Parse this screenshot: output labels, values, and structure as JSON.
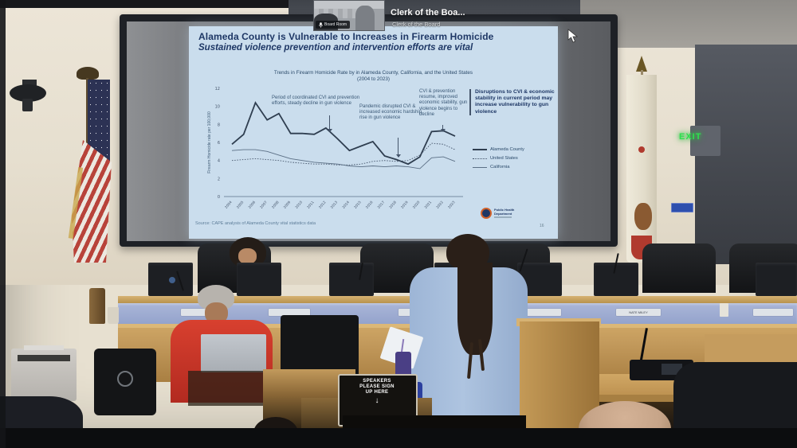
{
  "video_overlay": {
    "participant_title": "Clerk of the Boa...",
    "participant_subtitle": "Clerk of the Board",
    "thumbnail_label": "Board Room"
  },
  "slide": {
    "title": "Alameda County is Vulnerable to Increases in Firearm Homicide",
    "subtitle": "Sustained violence prevention and intervention efforts are vital",
    "callout": "Disruptions to CVI & economic stability in current period may increase vulnerability to gun violence",
    "source": "Source: CAPE analysis of Alameda County vital statistics data",
    "logo_line1": "Public Health",
    "logo_line2": "Department",
    "page_number": "16"
  },
  "chart_data": {
    "type": "line",
    "title": "Trends in Firearm Homicide Rate by in Alameda County, California, and the United States",
    "subtitle": "(2004 to 2023)",
    "ylabel": "Firearm Homicide rate per 100,000",
    "ylim": [
      0,
      12
    ],
    "yticks": [
      0,
      2,
      4,
      6,
      8,
      10,
      12
    ],
    "grid": false,
    "legend_position": "right",
    "x": [
      2004,
      2005,
      2006,
      2007,
      2008,
      2009,
      2010,
      2011,
      2012,
      2013,
      2014,
      2015,
      2016,
      2017,
      2018,
      2019,
      2020,
      2021,
      2022,
      2023
    ],
    "series": [
      {
        "name": "Alameda County",
        "style": "solid-thick",
        "color": "#2f3e50",
        "values": [
          5.8,
          6.9,
          10.4,
          8.5,
          9.2,
          7.0,
          7.0,
          6.9,
          7.6,
          6.4,
          5.1,
          5.6,
          6.1,
          4.5,
          4.1,
          3.6,
          4.4,
          7.2,
          7.3,
          6.7
        ]
      },
      {
        "name": "United States",
        "style": "dotted",
        "color": "#44546a",
        "values": [
          4.0,
          4.1,
          4.2,
          4.1,
          4.0,
          3.8,
          3.7,
          3.6,
          3.6,
          3.5,
          3.5,
          3.6,
          3.9,
          4.0,
          3.9,
          4.0,
          4.6,
          5.9,
          5.8,
          5.2
        ]
      },
      {
        "name": "California",
        "style": "solid-thin",
        "color": "#5b6f85",
        "values": [
          5.1,
          5.2,
          5.2,
          5.0,
          4.6,
          4.2,
          4.0,
          3.8,
          3.7,
          3.6,
          3.4,
          3.3,
          3.4,
          3.3,
          3.4,
          3.3,
          3.1,
          4.3,
          4.4,
          3.9
        ]
      }
    ],
    "annotations": [
      {
        "text": "Period of coordinated CVI and prevention efforts, steady decline in gun violence"
      },
      {
        "text": "Pandemic disrupted CVI & increased economic hardship, rise in gun violence"
      },
      {
        "text": "CVI & prevention resume, improved economic stability, gun violence begins to decline"
      }
    ]
  },
  "room": {
    "exit_sign": "EXIT",
    "nameplates": [
      "",
      "",
      "",
      "",
      "NATE MILEY",
      ""
    ],
    "speaker_sign": {
      "line1": "SPEAKERS",
      "line2": "PLEASE SIGN",
      "line3": "UP HERE",
      "arrow": "↓"
    }
  },
  "colors": {
    "slide_bg": "#cadded",
    "navy": "#1e3765",
    "fascia_blue": "#9fadd3",
    "exit_green": "#3ed455",
    "wood": "#c49b5d"
  }
}
